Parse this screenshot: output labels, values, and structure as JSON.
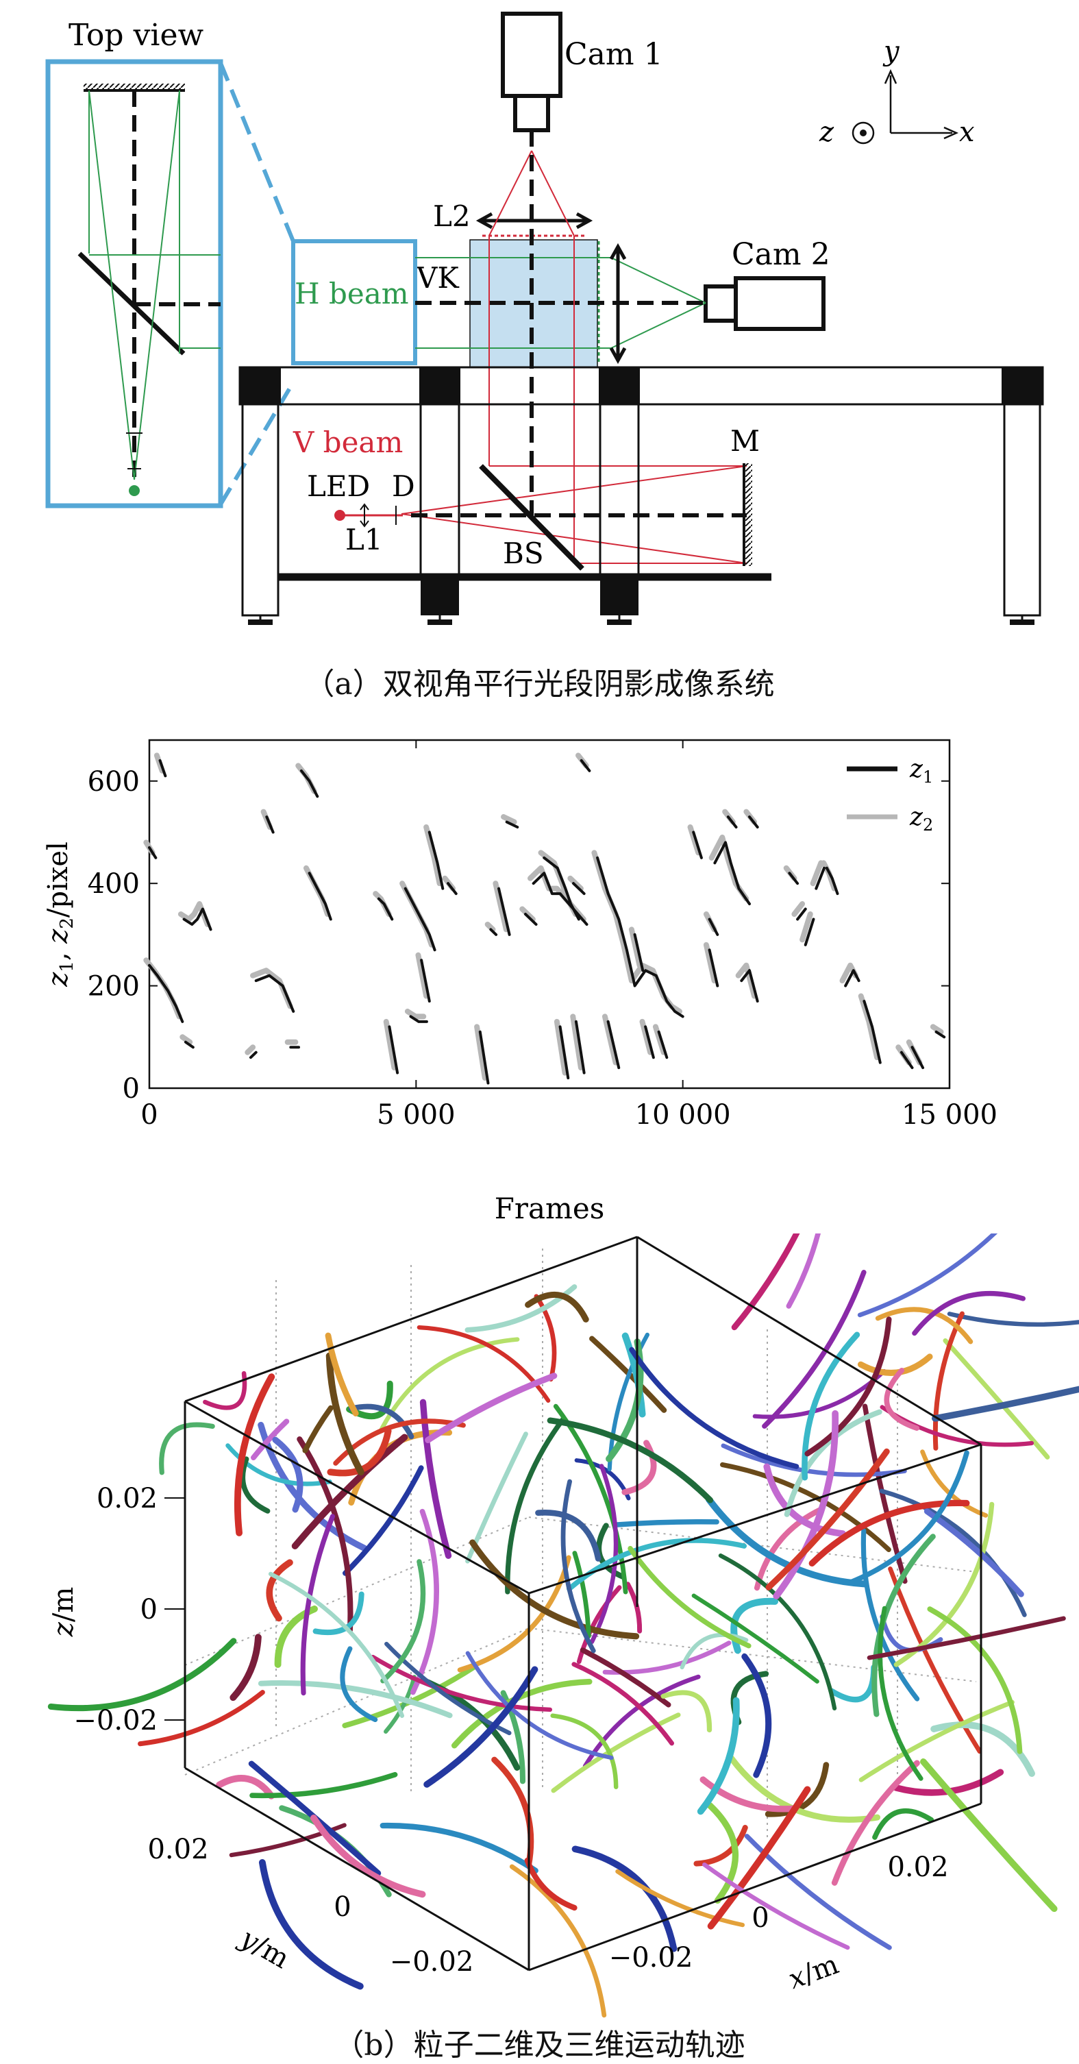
{
  "panel_a": {
    "top_view_label": "Top view",
    "cam1_label": "Cam 1",
    "cam2_label": "Cam 2",
    "l2_label": "L2",
    "vk_label": "VK",
    "h_beam_label": "H beam",
    "v_beam_label": "V beam",
    "m_label": "M",
    "led_label": "LED",
    "d_label": "D",
    "l1_label": "L1",
    "bs_label": "BS",
    "axis_y": "y",
    "axis_z": "z",
    "axis_x": "x",
    "caption": "（a）双视角平行光段阴影成像系统",
    "colors": {
      "frame_blue": "#55a7d6",
      "h_beam": "#2e9a4e",
      "v_beam": "#d22a3a",
      "vk_fill": "#c5dff0"
    }
  },
  "chart_data": {
    "type": "line",
    "xlabel": "Frames",
    "ylabel": "z1, z2/pixel",
    "xlim": [
      0,
      15000
    ],
    "ylim": [
      0,
      680
    ],
    "x_ticks": [
      "0",
      "5 000",
      "10 000",
      "15 000"
    ],
    "y_ticks": [
      "0",
      "200",
      "400",
      "600"
    ],
    "legend": {
      "position": "top-right",
      "entries": [
        "z1",
        "z2"
      ]
    },
    "grid": false,
    "series": [
      {
        "name": "z1",
        "color": "#111111",
        "tracks": [
          [
            [
              200,
              640
            ],
            [
              300,
              610
            ]
          ],
          [
            [
              0,
              470
            ],
            [
              120,
              450
            ]
          ],
          [
            [
              0,
              240
            ],
            [
              150,
              220
            ],
            [
              350,
              190
            ],
            [
              500,
              160
            ],
            [
              620,
              130
            ]
          ],
          [
            [
              650,
              330
            ],
            [
              800,
              320
            ],
            [
              900,
              330
            ],
            [
              1000,
              350
            ],
            [
              1150,
              310
            ]
          ],
          [
            [
              680,
              90
            ],
            [
              820,
              80
            ]
          ],
          [
            [
              1900,
              60
            ],
            [
              2000,
              70
            ]
          ],
          [
            [
              2650,
              80
            ],
            [
              2800,
              80
            ]
          ],
          [
            [
              2000,
              210
            ],
            [
              2250,
              220
            ],
            [
              2500,
              200
            ],
            [
              2700,
              150
            ]
          ],
          [
            [
              2200,
              530
            ],
            [
              2320,
              500
            ]
          ],
          [
            [
              2850,
              620
            ],
            [
              3000,
              600
            ],
            [
              3150,
              570
            ]
          ],
          [
            [
              3000,
              420
            ],
            [
              3150,
              390
            ],
            [
              3300,
              360
            ],
            [
              3400,
              330
            ]
          ],
          [
            [
              4300,
              370
            ],
            [
              4400,
              360
            ],
            [
              4550,
              330
            ]
          ],
          [
            [
              4500,
              120
            ],
            [
              4650,
              30
            ]
          ],
          [
            [
              4800,
              390
            ],
            [
              4950,
              360
            ],
            [
              5100,
              330
            ],
            [
              5250,
              300
            ],
            [
              5350,
              270
            ]
          ],
          [
            [
              4900,
              140
            ],
            [
              5050,
              130
            ],
            [
              5200,
              130
            ]
          ],
          [
            [
              5100,
              250
            ],
            [
              5250,
              170
            ]
          ],
          [
            [
              5250,
              500
            ],
            [
              5400,
              440
            ],
            [
              5500,
              390
            ]
          ],
          [
            [
              5600,
              400
            ],
            [
              5750,
              380
            ]
          ],
          [
            [
              6200,
              110
            ],
            [
              6350,
              10
            ]
          ],
          [
            [
              6400,
              310
            ],
            [
              6500,
              300
            ]
          ],
          [
            [
              6550,
              390
            ],
            [
              6750,
              300
            ]
          ],
          [
            [
              6700,
              520
            ],
            [
              6900,
              510
            ]
          ],
          [
            [
              7050,
              340
            ],
            [
              7250,
              320
            ]
          ],
          [
            [
              7200,
              400
            ],
            [
              7400,
              420
            ],
            [
              7550,
              380
            ],
            [
              7700,
              380
            ],
            [
              7950,
              350
            ],
            [
              8200,
              320
            ]
          ],
          [
            [
              7400,
              450
            ],
            [
              7650,
              430
            ],
            [
              7800,
              390
            ],
            [
              7900,
              360
            ],
            [
              8050,
              330
            ]
          ],
          [
            [
              7700,
              120
            ],
            [
              7850,
              20
            ]
          ],
          [
            [
              8000,
              130
            ],
            [
              8150,
              30
            ]
          ],
          [
            [
              7950,
              400
            ],
            [
              8150,
              380
            ]
          ],
          [
            [
              8100,
              640
            ],
            [
              8250,
              620
            ]
          ],
          [
            [
              8400,
              450
            ],
            [
              8600,
              380
            ],
            [
              8800,
              330
            ],
            [
              8950,
              270
            ],
            [
              9100,
              200
            ],
            [
              9300,
              230
            ],
            [
              9500,
              220
            ],
            [
              9700,
              170
            ],
            [
              9850,
              150
            ],
            [
              10000,
              140
            ]
          ],
          [
            [
              8600,
              130
            ],
            [
              8800,
              40
            ]
          ],
          [
            [
              9100,
              300
            ],
            [
              9250,
              230
            ]
          ],
          [
            [
              9300,
              120
            ],
            [
              9450,
              60
            ]
          ],
          [
            [
              9550,
              110
            ],
            [
              9700,
              60
            ]
          ],
          [
            [
              10200,
              500
            ],
            [
              10350,
              450
            ]
          ],
          [
            [
              10500,
              270
            ],
            [
              10650,
              200
            ]
          ],
          [
            [
              10500,
              330
            ],
            [
              10650,
              300
            ]
          ],
          [
            [
              10600,
              440
            ],
            [
              10800,
              480
            ],
            [
              10900,
              440
            ],
            [
              11050,
              390
            ],
            [
              11250,
              360
            ]
          ],
          [
            [
              10850,
              530
            ],
            [
              11000,
              510
            ]
          ],
          [
            [
              11100,
              210
            ],
            [
              11250,
              230
            ],
            [
              11400,
              170
            ]
          ],
          [
            [
              11250,
              530
            ],
            [
              11400,
              510
            ]
          ],
          [
            [
              12000,
              420
            ],
            [
              12150,
              400
            ]
          ],
          [
            [
              12150,
              330
            ],
            [
              12300,
              350
            ]
          ],
          [
            [
              12300,
              280
            ],
            [
              12450,
              330
            ]
          ],
          [
            [
              12500,
              390
            ],
            [
              12650,
              430
            ]
          ],
          [
            [
              12700,
              430
            ],
            [
              12800,
              410
            ],
            [
              12900,
              380
            ]
          ],
          [
            [
              13050,
              200
            ],
            [
              13200,
              230
            ],
            [
              13300,
              210
            ]
          ],
          [
            [
              13400,
              170
            ],
            [
              13550,
              120
            ],
            [
              13700,
              50
            ]
          ],
          [
            [
              14100,
              70
            ],
            [
              14300,
              40
            ]
          ],
          [
            [
              14300,
              80
            ],
            [
              14500,
              40
            ]
          ],
          [
            [
              14750,
              110
            ],
            [
              14900,
              100
            ]
          ]
        ]
      },
      {
        "name": "z2",
        "color": "#b7b7b7",
        "offset": [
          -60,
          10
        ]
      }
    ]
  },
  "panel_b": {
    "z_label": "z/m",
    "y_label": "y/m",
    "x_label": "x/m",
    "z_ticks": [
      "0.02",
      "0",
      "−0.02"
    ],
    "y_ticks": [
      "0.02",
      "0",
      "−0.02"
    ],
    "x_ticks": [
      "−0.02",
      "0",
      "0.02"
    ],
    "caption": "（b）粒子二维及三维运动轨迹"
  }
}
